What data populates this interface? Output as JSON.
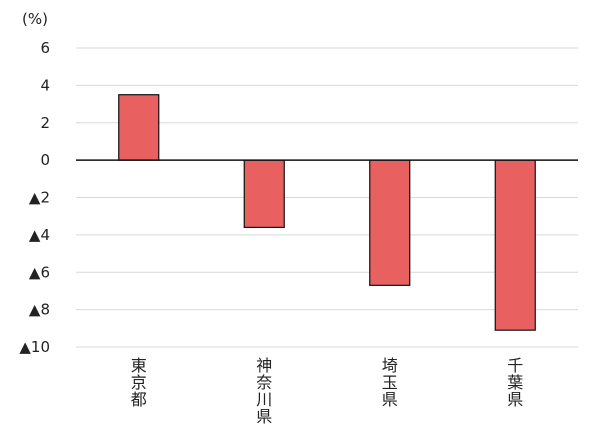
{
  "chart_data": {
    "type": "bar",
    "unit_label": "(%)",
    "categories": [
      "東京都",
      "神奈川県",
      "埼玉県",
      "千葉県"
    ],
    "values": [
      3.5,
      -3.6,
      -6.7,
      -9.1
    ],
    "ylim": [
      -10,
      6
    ],
    "yticks": [
      6,
      4,
      2,
      0,
      -2,
      -4,
      -6,
      -8,
      -10
    ],
    "ytick_labels": [
      "6",
      "4",
      "2",
      "0",
      "▲2",
      "▲4",
      "▲6",
      "▲8",
      "▲10"
    ],
    "grid": true,
    "colors": {
      "bar_fill": "#e86060",
      "bar_stroke": "#111111",
      "grid": "#d9d9d9",
      "zero_line": "#111111"
    }
  }
}
